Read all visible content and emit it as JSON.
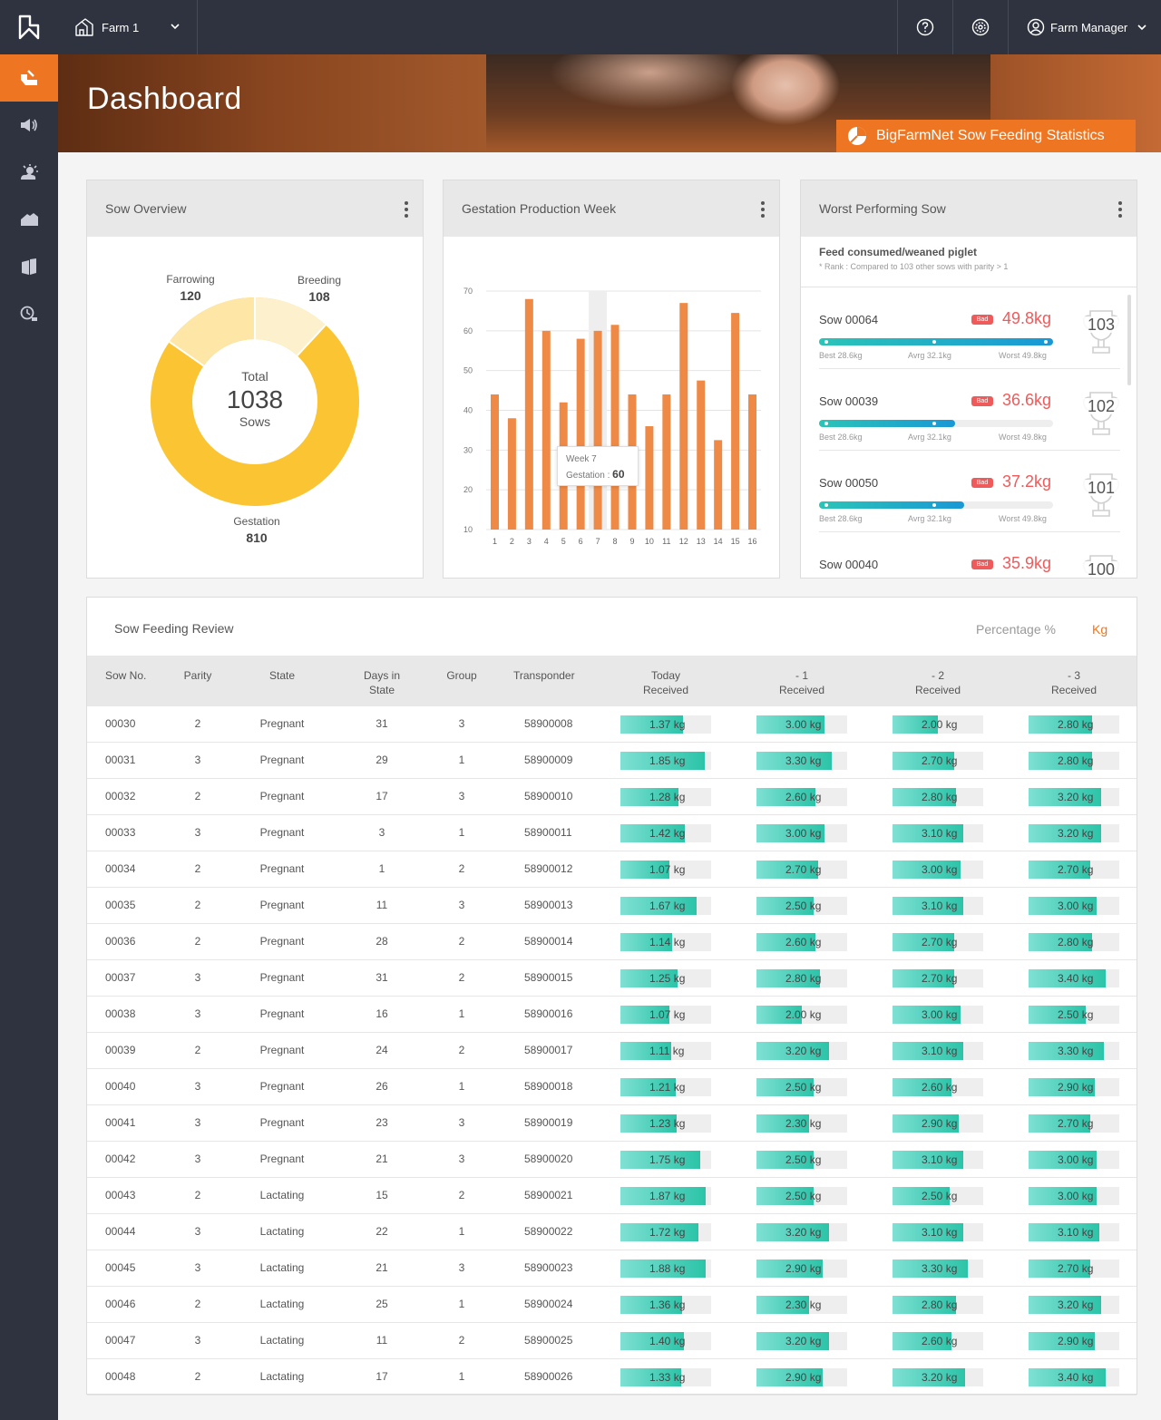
{
  "topbar": {
    "farm_label": "Farm 1",
    "user_label": "Farm Manager"
  },
  "sidebar": {
    "items": [
      "logo-icon",
      "dashboard-icon",
      "announcements-icon",
      "weather-icon",
      "farm-buildings-icon",
      "reports-icon",
      "history-icon"
    ]
  },
  "banner": {
    "title": "Dashboard",
    "stats_button": "BigFarmNet Sow Feeding Statistics"
  },
  "colors": {
    "accent": "#ee7623",
    "sidebar": "#2f3340",
    "bad": "#ef5a5a",
    "teal": "#2bc4b7"
  },
  "sow_overview": {
    "title": "Sow Overview",
    "center_label": "Total",
    "total": "1038",
    "unit": "Sows",
    "segments": [
      {
        "label": "Farrowing",
        "value": "120"
      },
      {
        "label": "Breeding",
        "value": "108"
      },
      {
        "label": "Gestation",
        "value": "810"
      }
    ]
  },
  "gestation": {
    "title": "Gestation Production Week",
    "tooltip_week": "Week 7",
    "tooltip_label": "Gestation : ",
    "tooltip_value": "60"
  },
  "chart_data": {
    "type": "bar",
    "title": "Gestation Production Week",
    "categories": [
      "1",
      "2",
      "3",
      "4",
      "5",
      "6",
      "7",
      "8",
      "9",
      "10",
      "11",
      "12",
      "13",
      "14",
      "15",
      "16"
    ],
    "values": [
      44,
      38,
      68,
      60,
      42,
      58,
      60,
      61.5,
      44,
      36,
      44,
      67,
      47.5,
      32.5,
      64.5,
      44
    ],
    "yticks": [
      "70",
      "60",
      "50",
      "40",
      "30",
      "20",
      "10"
    ],
    "ylim": [
      10,
      70
    ],
    "highlight_category": "7",
    "grid": true
  },
  "worst": {
    "title": "Worst Performing Sow",
    "subtitle": "Feed consumed/weaned piglet",
    "note": "* Rank : Compared to 103 other sows with parity > 1",
    "best": "Best 28.6kg",
    "avg": "Avrg 32.1kg",
    "worst_label": "Worst 49.8kg",
    "badge": "Bad",
    "rows": [
      {
        "name": "Sow 00064",
        "value": "49.8kg",
        "rank": "103",
        "fill": 1.0
      },
      {
        "name": "Sow 00039",
        "value": "36.6kg",
        "rank": "102",
        "fill": 0.58
      },
      {
        "name": "Sow 00050",
        "value": "37.2kg",
        "rank": "101",
        "fill": 0.62
      },
      {
        "name": "Sow 00040",
        "value": "35.9kg",
        "rank": "100",
        "fill": 0.55
      }
    ]
  },
  "review": {
    "title": "Sow Feeding Review",
    "toggle_percentage": "Percentage %",
    "toggle_kg": "Kg",
    "columns": [
      "Sow No.",
      "Parity",
      "State",
      "Days in\nState",
      "Group",
      "Transponder",
      "Today\nReceived",
      "- 1\nReceived",
      "- 2\nReceived",
      "- 3\nReceived"
    ],
    "rows": [
      {
        "no": "00030",
        "parity": "2",
        "state": "Pregnant",
        "days": "31",
        "group": "3",
        "tr": "58900008",
        "today": "1.37 kg",
        "d1": "3.00 kg",
        "d2": "2.00 kg",
        "d3": "2.80 kg"
      },
      {
        "no": "00031",
        "parity": "3",
        "state": "Pregnant",
        "days": "29",
        "group": "1",
        "tr": "58900009",
        "today": "1.85 kg",
        "d1": "3.30 kg",
        "d2": "2.70 kg",
        "d3": "2.80 kg"
      },
      {
        "no": "00032",
        "parity": "2",
        "state": "Pregnant",
        "days": "17",
        "group": "3",
        "tr": "58900010",
        "today": "1.28 kg",
        "d1": "2.60 kg",
        "d2": "2.80 kg",
        "d3": "3.20 kg"
      },
      {
        "no": "00033",
        "parity": "3",
        "state": "Pregnant",
        "days": "3",
        "group": "1",
        "tr": "58900011",
        "today": "1.42 kg",
        "d1": "3.00 kg",
        "d2": "3.10 kg",
        "d3": "3.20 kg"
      },
      {
        "no": "00034",
        "parity": "2",
        "state": "Pregnant",
        "days": "1",
        "group": "2",
        "tr": "58900012",
        "today": "1.07 kg",
        "d1": "2.70 kg",
        "d2": "3.00 kg",
        "d3": "2.70 kg"
      },
      {
        "no": "00035",
        "parity": "2",
        "state": "Pregnant",
        "days": "11",
        "group": "3",
        "tr": "58900013",
        "today": "1.67 kg",
        "d1": "2.50 kg",
        "d2": "3.10 kg",
        "d3": "3.00 kg"
      },
      {
        "no": "00036",
        "parity": "2",
        "state": "Pregnant",
        "days": "28",
        "group": "2",
        "tr": "58900014",
        "today": "1.14 kg",
        "d1": "2.60 kg",
        "d2": "2.70 kg",
        "d3": "2.80 kg"
      },
      {
        "no": "00037",
        "parity": "3",
        "state": "Pregnant",
        "days": "31",
        "group": "2",
        "tr": "58900015",
        "today": "1.25 kg",
        "d1": "2.80 kg",
        "d2": "2.70 kg",
        "d3": "3.40 kg"
      },
      {
        "no": "00038",
        "parity": "3",
        "state": "Pregnant",
        "days": "16",
        "group": "1",
        "tr": "58900016",
        "today": "1.07 kg",
        "d1": "2.00 kg",
        "d2": "3.00 kg",
        "d3": "2.50 kg"
      },
      {
        "no": "00039",
        "parity": "2",
        "state": "Pregnant",
        "days": "24",
        "group": "2",
        "tr": "58900017",
        "today": "1.11 kg",
        "d1": "3.20 kg",
        "d2": "3.10 kg",
        "d3": "3.30 kg"
      },
      {
        "no": "00040",
        "parity": "3",
        "state": "Pregnant",
        "days": "26",
        "group": "1",
        "tr": "58900018",
        "today": "1.21 kg",
        "d1": "2.50 kg",
        "d2": "2.60 kg",
        "d3": "2.90 kg"
      },
      {
        "no": "00041",
        "parity": "3",
        "state": "Pregnant",
        "days": "23",
        "group": "3",
        "tr": "58900019",
        "today": "1.23 kg",
        "d1": "2.30 kg",
        "d2": "2.90 kg",
        "d3": "2.70 kg"
      },
      {
        "no": "00042",
        "parity": "3",
        "state": "Pregnant",
        "days": "21",
        "group": "3",
        "tr": "58900020",
        "today": "1.75 kg",
        "d1": "2.50 kg",
        "d2": "3.10 kg",
        "d3": "3.00 kg"
      },
      {
        "no": "00043",
        "parity": "2",
        "state": "Lactating",
        "days": "15",
        "group": "2",
        "tr": "58900021",
        "today": "1.87 kg",
        "d1": "2.50 kg",
        "d2": "2.50 kg",
        "d3": "3.00 kg"
      },
      {
        "no": "00044",
        "parity": "3",
        "state": "Lactating",
        "days": "22",
        "group": "1",
        "tr": "58900022",
        "today": "1.72 kg",
        "d1": "3.20 kg",
        "d2": "3.10 kg",
        "d3": "3.10 kg"
      },
      {
        "no": "00045",
        "parity": "3",
        "state": "Lactating",
        "days": "21",
        "group": "3",
        "tr": "58900023",
        "today": "1.88 kg",
        "d1": "2.90 kg",
        "d2": "3.30 kg",
        "d3": "2.70 kg"
      },
      {
        "no": "00046",
        "parity": "2",
        "state": "Lactating",
        "days": "25",
        "group": "1",
        "tr": "58900024",
        "today": "1.36 kg",
        "d1": "2.30 kg",
        "d2": "2.80 kg",
        "d3": "3.20 kg"
      },
      {
        "no": "00047",
        "parity": "3",
        "state": "Lactating",
        "days": "11",
        "group": "2",
        "tr": "58900025",
        "today": "1.40 kg",
        "d1": "3.20 kg",
        "d2": "2.60 kg",
        "d3": "2.90 kg"
      },
      {
        "no": "00048",
        "parity": "2",
        "state": "Lactating",
        "days": "17",
        "group": "1",
        "tr": "58900026",
        "today": "1.33 kg",
        "d1": "2.90 kg",
        "d2": "3.20 kg",
        "d3": "3.40 kg"
      }
    ]
  }
}
